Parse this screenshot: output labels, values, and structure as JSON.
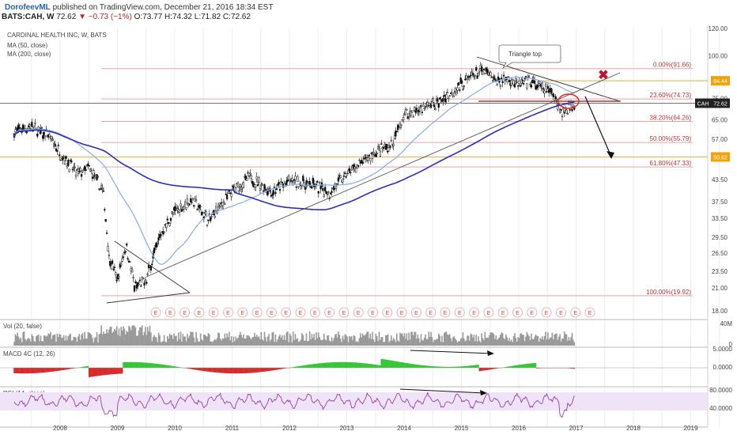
{
  "header": {
    "author": "DorofeevML",
    "published": "published on TradingView.com, December 21, 2016 18:34 EST",
    "symbol": "BATS:CAH, W",
    "last": "72.62",
    "change": "−0.73 (−1%)",
    "ohlc": "O:73.77 H:74.32 L:71.82 C:72.62"
  },
  "chart_data": {
    "type": "candlestick",
    "title": "CARDINAL HEALTH INC, W, BATS",
    "indicators": [
      "MA (50, close)",
      "MA (200, close)"
    ],
    "price_axis": {
      "scale": "log",
      "min": 18.0,
      "max": 120.0,
      "ticks": [
        "120.00",
        "100.00",
        "85.00",
        "75.00",
        "65.00",
        "57.00",
        "50.00",
        "43.50",
        "37.50",
        "33.50",
        "29.50",
        "26.50",
        "23.50",
        "21.00",
        "18.00"
      ]
    },
    "time_axis": {
      "ticks": [
        "2008",
        "2009",
        "2010",
        "2011",
        "2012",
        "2013",
        "2014",
        "2015",
        "2016",
        "2017",
        "2018",
        "2019"
      ]
    },
    "price_path": [
      {
        "t": 2007.2,
        "p": 60
      },
      {
        "t": 2007.5,
        "p": 62
      },
      {
        "t": 2007.8,
        "p": 58
      },
      {
        "t": 2008.0,
        "p": 52
      },
      {
        "t": 2008.3,
        "p": 45
      },
      {
        "t": 2008.5,
        "p": 47
      },
      {
        "t": 2008.75,
        "p": 40
      },
      {
        "t": 2008.85,
        "p": 26
      },
      {
        "t": 2009.0,
        "p": 22
      },
      {
        "t": 2009.15,
        "p": 28
      },
      {
        "t": 2009.3,
        "p": 21
      },
      {
        "t": 2009.5,
        "p": 22
      },
      {
        "t": 2009.75,
        "p": 30
      },
      {
        "t": 2010.0,
        "p": 35
      },
      {
        "t": 2010.3,
        "p": 38
      },
      {
        "t": 2010.6,
        "p": 33
      },
      {
        "t": 2011.0,
        "p": 40
      },
      {
        "t": 2011.3,
        "p": 44
      },
      {
        "t": 2011.7,
        "p": 40
      },
      {
        "t": 2012.0,
        "p": 43
      },
      {
        "t": 2012.4,
        "p": 42
      },
      {
        "t": 2012.7,
        "p": 40
      },
      {
        "t": 2013.0,
        "p": 45
      },
      {
        "t": 2013.5,
        "p": 52
      },
      {
        "t": 2013.8,
        "p": 55
      },
      {
        "t": 2014.0,
        "p": 67
      },
      {
        "t": 2014.3,
        "p": 70
      },
      {
        "t": 2014.6,
        "p": 73
      },
      {
        "t": 2014.9,
        "p": 80
      },
      {
        "t": 2015.2,
        "p": 88
      },
      {
        "t": 2015.4,
        "p": 90
      },
      {
        "t": 2015.6,
        "p": 84
      },
      {
        "t": 2015.8,
        "p": 86
      },
      {
        "t": 2016.0,
        "p": 82
      },
      {
        "t": 2016.2,
        "p": 84
      },
      {
        "t": 2016.4,
        "p": 80
      },
      {
        "t": 2016.6,
        "p": 78
      },
      {
        "t": 2016.75,
        "p": 68
      },
      {
        "t": 2016.85,
        "p": 70
      },
      {
        "t": 2016.97,
        "p": 72.62
      }
    ],
    "fib_levels": [
      {
        "label": "0.00%(91.66)",
        "value": 91.66
      },
      {
        "label": "23.60%(74.73)",
        "value": 74.73
      },
      {
        "label": "38.20%(64.26)",
        "value": 64.26
      },
      {
        "label": "50.00%(55.79)",
        "value": 55.79
      },
      {
        "label": "61.80%(47.33)",
        "value": 47.33
      },
      {
        "label": "100.00%(19.92)",
        "value": 19.92
      }
    ],
    "price_flags": [
      {
        "label": "84.44",
        "value": 84.44,
        "color": "#f0a30a"
      },
      {
        "label": "72.62",
        "value": 72.62,
        "color": "#222222"
      },
      {
        "label": "50.62",
        "value": 50.62,
        "color": "#f0a30a"
      }
    ],
    "flag_symbol": "CAH",
    "annotations": {
      "triangle_top": "Triangle top",
      "marker": "✖",
      "earnings": "E"
    },
    "panes": [
      {
        "name": "Vol (20, false)",
        "ticks": [
          "40M",
          "0"
        ]
      },
      {
        "name": "MACD 4C (12, 26)",
        "ticks": [
          "5.0000",
          "0.0000"
        ]
      },
      {
        "name": "RSI (14, close)",
        "ticks": [
          "80.0000",
          "40.0000"
        ]
      }
    ]
  },
  "colors": {
    "ma50": "#87aee0",
    "ma200": "#2c2fb5",
    "fib": "#e6a3a3",
    "fib_text": "#b23a3a",
    "macd_pos": "#34c634",
    "macd_neg": "#d82a2a",
    "rsi": "#8a2ea8",
    "rsi_band": "#efe3f7",
    "marker": "#c0152d"
  }
}
